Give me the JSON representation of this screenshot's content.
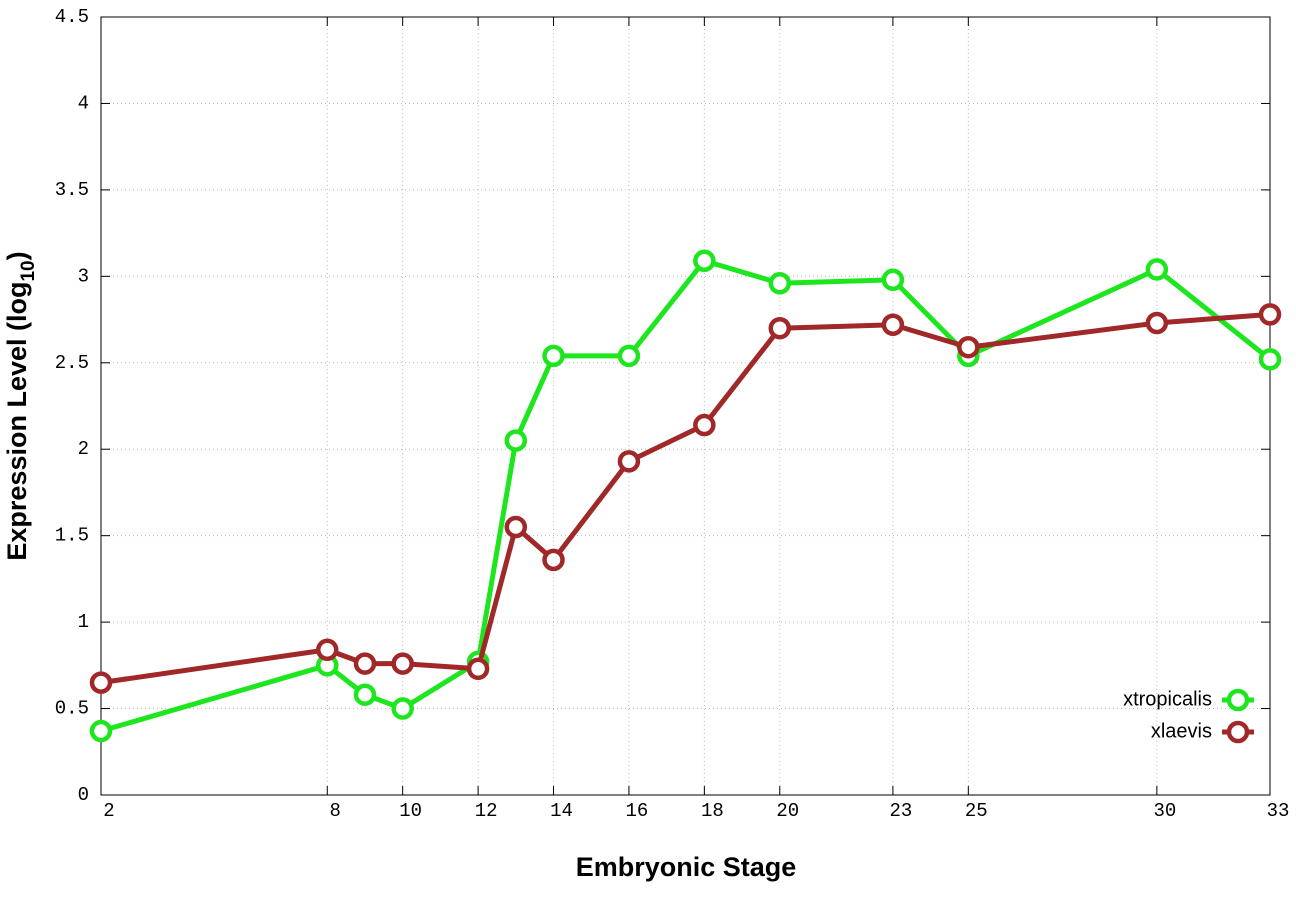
{
  "chart_data": {
    "type": "line",
    "xlabel": "Embryonic Stage",
    "ylabel": {
      "text": "Expression Level (log",
      "subscript": "10",
      "suffix": ")"
    },
    "x": [
      2,
      8,
      9,
      10,
      12,
      13,
      14,
      16,
      18,
      20,
      23,
      25,
      30,
      33
    ],
    "xlim": [
      2,
      33
    ],
    "xticks": [
      2,
      8,
      10,
      12,
      14,
      16,
      18,
      20,
      23,
      25,
      30,
      33
    ],
    "ylim": [
      0,
      4.5
    ],
    "yticks": [
      0,
      0.5,
      1,
      1.5,
      2,
      2.5,
      3,
      3.5,
      4,
      4.5
    ],
    "grid": true,
    "legend": "lower right",
    "series": [
      {
        "name": "xtropicalis",
        "color": "#1ee61e",
        "values": [
          0.37,
          0.75,
          0.58,
          0.5,
          0.77,
          2.05,
          2.54,
          2.54,
          3.09,
          2.96,
          2.98,
          2.54,
          3.04,
          2.52
        ]
      },
      {
        "name": "xlaevis",
        "color": "#a02828",
        "values": [
          0.65,
          0.84,
          0.76,
          0.76,
          0.73,
          1.55,
          1.36,
          1.93,
          2.14,
          2.7,
          2.72,
          2.59,
          2.73,
          2.78
        ]
      }
    ]
  }
}
